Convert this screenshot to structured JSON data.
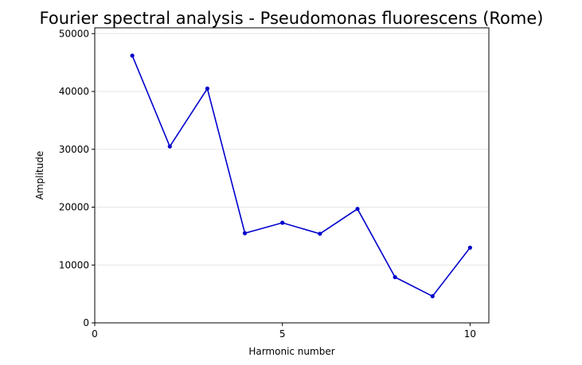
{
  "chart_data": {
    "type": "line",
    "title": "Fourier spectral analysis - Pseudomonas fluorescens (Rome)",
    "xlabel": "Harmonic number",
    "ylabel": "Amplitude",
    "xlim": [
      0,
      10.5
    ],
    "ylim": [
      0,
      51000
    ],
    "xticks": [
      0,
      5,
      10
    ],
    "yticks": [
      0,
      10000,
      20000,
      30000,
      40000,
      50000
    ],
    "grid": "horizontal",
    "x": [
      1,
      2,
      3,
      4,
      5,
      6,
      7,
      8,
      9,
      10
    ],
    "series": [
      {
        "values": [
          46200,
          30500,
          40500,
          15500,
          17300,
          15400,
          19700,
          7900,
          4600,
          13000
        ],
        "color": "#0000cc",
        "marker": "circle"
      }
    ]
  }
}
